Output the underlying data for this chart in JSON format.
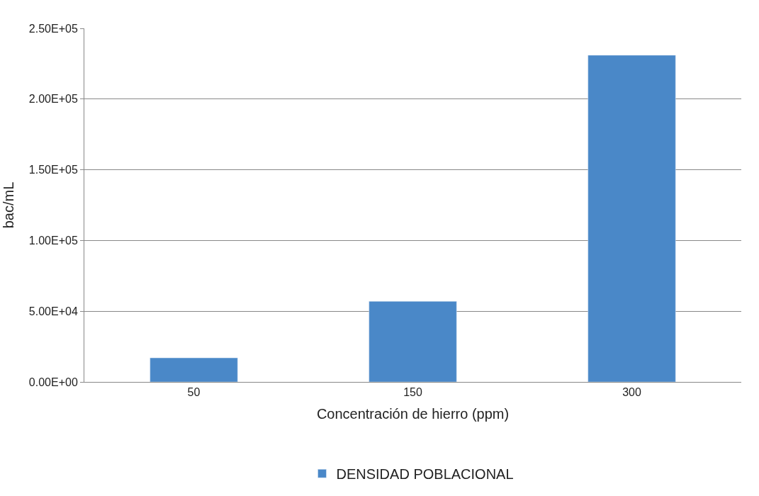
{
  "chart_data": {
    "type": "bar",
    "xlabel": "Concentración de hierro (ppm)",
    "ylabel": "bac/mL",
    "categories": [
      "50",
      "150",
      "300"
    ],
    "series": [
      {
        "name": "DENSIDAD POBLACIONAL",
        "color": "#4a88c8",
        "values": [
          17000,
          57000,
          231000
        ]
      }
    ],
    "ylim": [
      0,
      250000
    ],
    "yticks": [
      {
        "value": 0,
        "label": "0.00E+00"
      },
      {
        "value": 50000,
        "label": "5.00E+04"
      },
      {
        "value": 100000,
        "label": "1.00E+05"
      },
      {
        "value": 150000,
        "label": "1.50E+05"
      },
      {
        "value": 200000,
        "label": "2.00E+05"
      },
      {
        "value": 250000,
        "label": "2.50E+05"
      }
    ],
    "grid": "y",
    "legend": "bottom"
  }
}
